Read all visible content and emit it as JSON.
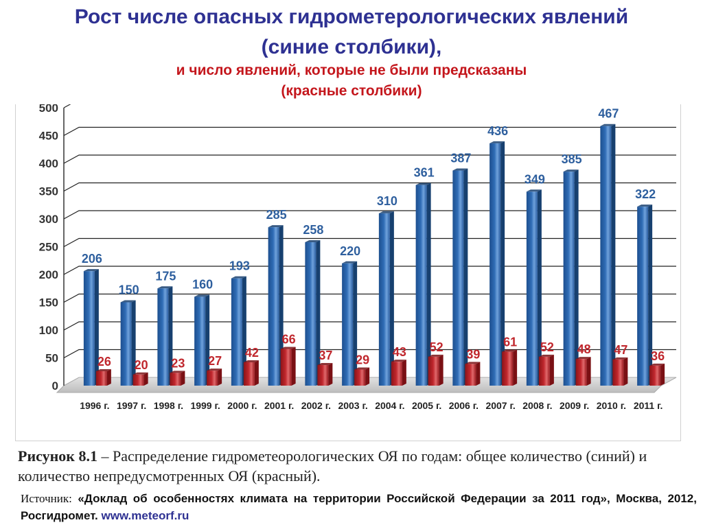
{
  "title": {
    "line1": "Рост числе опасных гидрометерологических явлений",
    "line2": "(синие столбики),",
    "line3": "и число явлений, которые не были предсказаны",
    "line4": "(красные столбики)"
  },
  "caption": {
    "label": "Рисунок 8.1",
    "text": " – Распределение гидрометеорологических ОЯ по годам: общее количество (синий) и количество непредусмотренных ОЯ (красный)."
  },
  "source": {
    "label": "Источник:",
    "text": " «Доклад об особенностях климата на территории Российской Федерации за 2011 год», Москва, 2012, Росгидромет.",
    "link": "www.meteorf.ru"
  },
  "colors": {
    "blue_series": "#2f6cb5",
    "red_series": "#c0272d",
    "title_blue": "#2e3192",
    "title_red": "#c4161c"
  },
  "chart_data": {
    "type": "bar",
    "categories": [
      "1996 г.",
      "1997 г.",
      "1998 г.",
      "1999 г.",
      "2000 г.",
      "2001 г.",
      "2002 г.",
      "2003 г.",
      "2004 г.",
      "2005 г.",
      "2006 г.",
      "2007 г.",
      "2008 г.",
      "2009 г.",
      "2010 г.",
      "2011 г."
    ],
    "series": [
      {
        "values": [
          206,
          150,
          175,
          160,
          193,
          285,
          258,
          220,
          310,
          361,
          387,
          436,
          349,
          385,
          467,
          322
        ]
      },
      {
        "values": [
          26,
          20,
          23,
          27,
          42,
          66,
          37,
          29,
          43,
          52,
          39,
          61,
          52,
          48,
          47,
          36
        ]
      }
    ],
    "ylim": [
      0,
      500
    ],
    "yticks": [
      0,
      50,
      100,
      150,
      200,
      250,
      300,
      350,
      400,
      450,
      500
    ],
    "grid": true,
    "legend": "none"
  }
}
